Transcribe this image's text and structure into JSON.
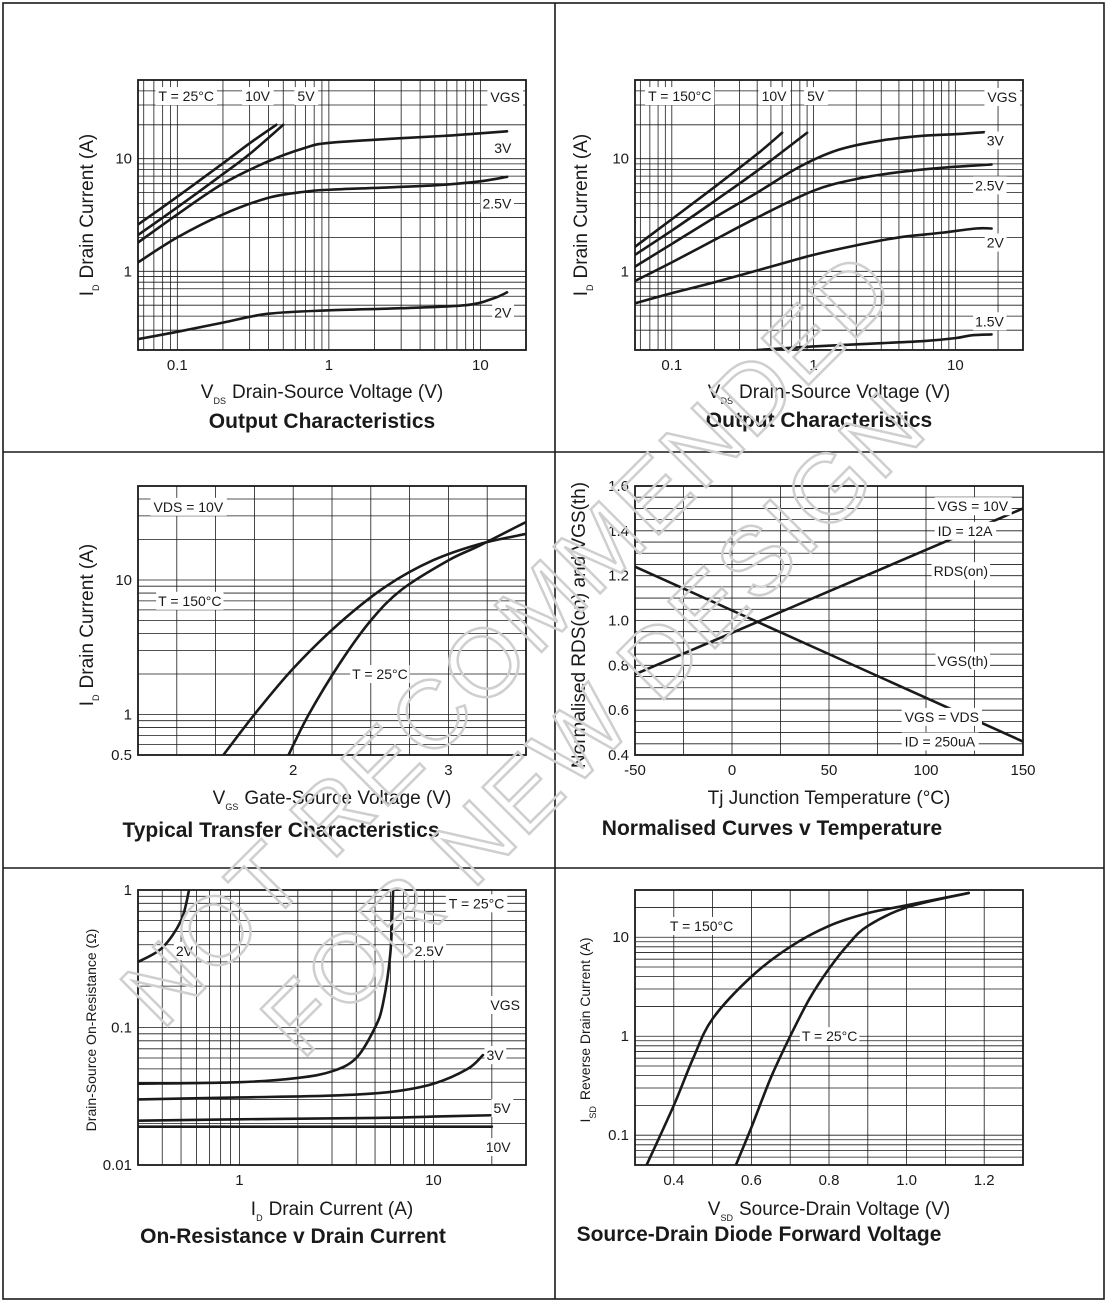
{
  "watermark": {
    "line1": "NOT RECOMMENDED",
    "line2": "FOR NEW DESIGN"
  },
  "chart_data": [
    {
      "id": "p1",
      "type": "line",
      "title": "Output Characteristics",
      "xlabel": "Drain-Source Voltage (V)",
      "xlabel_sym": "V",
      "xlabel_sub": "DS",
      "ylabel": "Drain Current (A)",
      "ylabel_sym": "I",
      "ylabel_sub": "D",
      "xscale": "log",
      "yscale": "log",
      "xlim": [
        0.055,
        20
      ],
      "ylim": [
        0.2,
        50
      ],
      "xticks": [
        {
          "v": 0.1,
          "t": "0.1"
        },
        {
          "v": 1,
          "t": "1"
        },
        {
          "v": 10,
          "t": "10"
        }
      ],
      "yticks": [
        {
          "v": 1,
          "t": "1"
        },
        {
          "v": 10,
          "t": "10"
        }
      ],
      "legend_title": "VGS",
      "annotations": [
        {
          "text": "T = 25°C",
          "x": 0.075,
          "y": 36
        },
        {
          "text": "10V",
          "x": 0.28,
          "y": 36
        },
        {
          "text": "5V",
          "x": 0.62,
          "y": 36
        }
      ],
      "series": [
        {
          "name": "10V",
          "x": [
            0.055,
            0.1,
            0.2,
            0.3,
            0.45
          ],
          "y": [
            2.6,
            4.6,
            9.1,
            13.7,
            20
          ]
        },
        {
          "name": "5V",
          "x": [
            0.055,
            0.1,
            0.2,
            0.3,
            0.5
          ],
          "y": [
            2.1,
            3.7,
            7.3,
            11,
            20
          ]
        },
        {
          "name": "3V",
          "x": [
            0.055,
            0.1,
            0.2,
            0.4,
            0.7,
            1,
            3,
            6,
            10,
            15
          ],
          "y": [
            1.8,
            3.2,
            6,
            9.5,
            12.5,
            13.8,
            15.2,
            16,
            16.8,
            17.5
          ],
          "label": "3V",
          "lx": 16,
          "ly": 12.5
        },
        {
          "name": "2.5V",
          "x": [
            0.055,
            0.1,
            0.2,
            0.4,
            0.7,
            1,
            2,
            5,
            10,
            15
          ],
          "y": [
            1.2,
            2,
            3.2,
            4.5,
            5.1,
            5.3,
            5.5,
            5.8,
            6.3,
            6.9
          ],
          "label": "2.5V",
          "lx": 16,
          "ly": 4
        },
        {
          "name": "2V",
          "x": [
            0.055,
            0.1,
            0.2,
            0.4,
            1,
            3,
            8,
            12,
            15
          ],
          "y": [
            0.25,
            0.29,
            0.35,
            0.42,
            0.45,
            0.47,
            0.5,
            0.57,
            0.65
          ],
          "label": "2V",
          "lx": 16,
          "ly": 0.43
        }
      ]
    },
    {
      "id": "p2",
      "type": "line",
      "title": "Output Characteristics",
      "xlabel": "Drain-Source Voltage (V)",
      "xlabel_sym": "V",
      "xlabel_sub": "DS",
      "ylabel": "Drain Current (A)",
      "ylabel_sym": "I",
      "ylabel_sub": "D",
      "xscale": "log",
      "yscale": "log",
      "xlim": [
        0.055,
        30
      ],
      "ylim": [
        0.2,
        50
      ],
      "xticks": [
        {
          "v": 0.1,
          "t": "0.1"
        },
        {
          "v": 1,
          "t": "1"
        },
        {
          "v": 10,
          "t": "10"
        }
      ],
      "yticks": [
        {
          "v": 1,
          "t": "1"
        },
        {
          "v": 10,
          "t": "10"
        }
      ],
      "legend_title": "VGS",
      "annotations": [
        {
          "text": "T = 150°C",
          "x": 0.068,
          "y": 36
        },
        {
          "text": "10V",
          "x": 0.43,
          "y": 36
        },
        {
          "text": "5V",
          "x": 0.9,
          "y": 36
        }
      ],
      "series": [
        {
          "name": "10V",
          "x": [
            0.055,
            0.1,
            0.2,
            0.4,
            0.6
          ],
          "y": [
            1.65,
            2.9,
            5.6,
            11,
            17
          ]
        },
        {
          "name": "5V",
          "x": [
            0.055,
            0.1,
            0.2,
            0.4,
            0.9
          ],
          "y": [
            1.4,
            2.3,
            4.2,
            7.8,
            17
          ]
        },
        {
          "name": "3V",
          "x": [
            0.055,
            0.1,
            0.2,
            0.4,
            0.8,
            1.5,
            3,
            6,
            10,
            16
          ],
          "y": [
            1.1,
            1.75,
            3,
            5,
            8.5,
            12,
            14.5,
            16,
            16.5,
            17.2
          ],
          "label": "3V",
          "lx": 22,
          "ly": 14.5
        },
        {
          "name": "2.5V",
          "x": [
            0.055,
            0.1,
            0.2,
            0.4,
            1,
            2,
            4,
            8,
            14,
            18
          ],
          "y": [
            0.82,
            1.2,
            1.9,
            3,
            5.2,
            6.6,
            7.6,
            8.3,
            8.7,
            8.9
          ],
          "label": "2.5V",
          "lx": 22,
          "ly": 5.8
        },
        {
          "name": "2V",
          "x": [
            0.055,
            0.1,
            0.2,
            0.5,
            1,
            2,
            4,
            8,
            14,
            18
          ],
          "y": [
            0.52,
            0.64,
            0.8,
            1.1,
            1.4,
            1.7,
            2.0,
            2.2,
            2.4,
            2.4
          ],
          "label": "2V",
          "lx": 22,
          "ly": 1.8
        },
        {
          "name": "1.5V",
          "x": [
            0.4,
            1,
            3,
            6,
            10,
            13,
            18
          ],
          "y": [
            0.2,
            0.215,
            0.23,
            0.24,
            0.255,
            0.27,
            0.275
          ],
          "label": "1.5V",
          "lx": 22,
          "ly": 0.36
        }
      ]
    },
    {
      "id": "p3",
      "type": "line",
      "title": "Typical Transfer Characteristics",
      "xlabel": "Gate-Source Voltage (V)",
      "xlabel_sym": "V",
      "xlabel_sub": "GS",
      "ylabel": "Drain Current (A)",
      "ylabel_sym": "I",
      "ylabel_sub": "D",
      "xscale": "linear",
      "yscale": "log",
      "xlim": [
        1.0,
        3.5
      ],
      "ylim": [
        0.5,
        50
      ],
      "xticks": [
        {
          "v": 2,
          "t": "2"
        },
        {
          "v": 3,
          "t": "3"
        }
      ],
      "yticks": [
        {
          "v": 0.5,
          "t": "0.5"
        },
        {
          "v": 1,
          "t": "1"
        },
        {
          "v": 10,
          "t": "10"
        }
      ],
      "annotations": [
        {
          "text": "VDS = 10V",
          "x": 1.1,
          "y": 35
        }
      ],
      "series": [
        {
          "name": "T = 150°C",
          "x": [
            1.55,
            1.75,
            2.0,
            2.3,
            2.6,
            2.9,
            3.2,
            3.5
          ],
          "y": [
            0.5,
            1,
            2.2,
            4.8,
            9,
            14,
            18.5,
            22
          ],
          "label": "T = 150°C",
          "lx": 1.13,
          "ly": 7
        },
        {
          "name": "T = 25°C",
          "x": [
            1.97,
            2.1,
            2.3,
            2.5,
            2.7,
            3.0,
            3.2,
            3.5
          ],
          "y": [
            0.5,
            1,
            2.4,
            5,
            8.5,
            14,
            18,
            27
          ],
          "label": "T = 25°C",
          "lx": 2.38,
          "ly": 2.0
        }
      ]
    },
    {
      "id": "p4",
      "type": "line",
      "title": "Normalised Curves v Temperature",
      "xlabel": "Tj  Junction Temperature (°C)",
      "ylabel": "Normalised RDS(on) and VGS(th)",
      "xscale": "linear",
      "yscale": "linear",
      "xlim": [
        -50,
        150
      ],
      "ylim": [
        0.4,
        1.6
      ],
      "xticks": [
        {
          "v": -50,
          "t": "-50"
        },
        {
          "v": 0,
          "t": "0"
        },
        {
          "v": 50,
          "t": "50"
        },
        {
          "v": 100,
          "t": "100"
        },
        {
          "v": 150,
          "t": "150"
        }
      ],
      "yticks": [
        {
          "v": 0.4,
          "t": "0.4"
        },
        {
          "v": 0.6,
          "t": "0.6"
        },
        {
          "v": 0.8,
          "t": "0.8"
        },
        {
          "v": 1.0,
          "t": "1.0"
        },
        {
          "v": 1.2,
          "t": "1.2"
        },
        {
          "v": 1.4,
          "t": "1.4"
        },
        {
          "v": 1.6,
          "t": "1.6"
        }
      ],
      "annotations": [
        {
          "text": "VGS = 10V",
          "x": 106,
          "y": 1.51
        },
        {
          "text": "ID = 12A",
          "x": 106,
          "y": 1.4
        },
        {
          "text": "VGS = VDS",
          "x": 89,
          "y": 0.57
        },
        {
          "text": "ID = 250uA",
          "x": 89,
          "y": 0.46
        }
      ],
      "series": [
        {
          "name": "RDS(on)",
          "x": [
            -50,
            150
          ],
          "y": [
            0.76,
            1.5
          ],
          "label": "RDS(on)",
          "lx": 132,
          "ly": 1.22
        },
        {
          "name": "VGS(th)",
          "x": [
            -50,
            150
          ],
          "y": [
            1.24,
            0.46
          ],
          "label": "VGS(th)",
          "lx": 132,
          "ly": 0.82
        }
      ]
    },
    {
      "id": "p5",
      "type": "line",
      "title": "On-Resistance v Drain Current",
      "xlabel": "Drain Current (A)",
      "xlabel_sym": "I",
      "xlabel_sub": "D",
      "ylabel": "Drain-Source On-Resistance (Ω)",
      "xscale": "log",
      "yscale": "log",
      "xlim": [
        0.3,
        30
      ],
      "ylim": [
        0.01,
        1
      ],
      "xticks": [
        {
          "v": 1,
          "t": "1"
        },
        {
          "v": 10,
          "t": "10"
        }
      ],
      "yticks": [
        {
          "v": 0.01,
          "t": "0.01"
        },
        {
          "v": 0.1,
          "t": "0.1"
        },
        {
          "v": 1,
          "t": "1"
        }
      ],
      "legend_title": "VGS",
      "annotations": [
        {
          "text": "T = 25°C",
          "x": 12,
          "y": 0.8
        }
      ],
      "series": [
        {
          "name": "2V",
          "x": [
            0.3,
            0.4,
            0.5,
            0.55
          ],
          "y": [
            0.3,
            0.38,
            0.6,
            1.0
          ],
          "label": "2V",
          "lx": 0.47,
          "ly": 0.36
        },
        {
          "name": "2.5V",
          "x": [
            0.3,
            1,
            2,
            3,
            4,
            5,
            5.5,
            6,
            6.2
          ],
          "y": [
            0.039,
            0.04,
            0.043,
            0.048,
            0.06,
            0.1,
            0.15,
            0.35,
            1.0
          ],
          "label": "2.5V",
          "lx": 8,
          "ly": 0.36
        },
        {
          "name": "3V",
          "x": [
            0.3,
            1,
            3,
            6,
            10,
            15,
            18
          ],
          "y": [
            0.03,
            0.031,
            0.032,
            0.034,
            0.039,
            0.05,
            0.063
          ],
          "label": "3V",
          "lx": 23,
          "ly": 0.063
        },
        {
          "name": "5V",
          "x": [
            0.3,
            1,
            5,
            10,
            20
          ],
          "y": [
            0.021,
            0.0215,
            0.022,
            0.0225,
            0.023
          ],
          "label": "5V",
          "lx": 25,
          "ly": 0.026
        },
        {
          "name": "10V",
          "x": [
            0.3,
            1,
            5,
            10,
            20
          ],
          "y": [
            0.019,
            0.019,
            0.019,
            0.019,
            0.019
          ],
          "label": "10V",
          "lx": 25,
          "ly": 0.0135
        }
      ]
    },
    {
      "id": "p6",
      "type": "line",
      "title": "Source-Drain Diode Forward Voltage",
      "xlabel": "Source-Drain Voltage (V)",
      "xlabel_sym": "V",
      "xlabel_sub": "SD",
      "ylabel": "Reverse Drain Current (A)",
      "ylabel_sym": "I",
      "ylabel_sub": "SD",
      "xscale": "linear",
      "yscale": "log",
      "xlim": [
        0.3,
        1.3
      ],
      "ylim": [
        0.05,
        30
      ],
      "xticks": [
        {
          "v": 0.4,
          "t": "0.4"
        },
        {
          "v": 0.6,
          "t": "0.6"
        },
        {
          "v": 0.8,
          "t": "0.8"
        },
        {
          "v": 1.0,
          "t": "1.0"
        },
        {
          "v": 1.2,
          "t": "1.2"
        }
      ],
      "yticks": [
        {
          "v": 0.1,
          "t": "0.1"
        },
        {
          "v": 1,
          "t": "1"
        },
        {
          "v": 10,
          "t": "10"
        }
      ],
      "annotations": [],
      "series": [
        {
          "name": "T = 150°C",
          "x": [
            0.33,
            0.4,
            0.45,
            0.5,
            0.6,
            0.7,
            0.8,
            0.9,
            1.0,
            1.16
          ],
          "y": [
            0.05,
            0.2,
            0.6,
            1.5,
            4,
            8,
            13,
            17.5,
            21,
            28
          ],
          "label": "T = 150°C",
          "lx": 0.39,
          "ly": 13
        },
        {
          "name": "T = 25°C",
          "x": [
            0.56,
            0.6,
            0.65,
            0.7,
            0.75,
            0.8,
            0.85,
            0.9,
            1.0,
            1.16
          ],
          "y": [
            0.05,
            0.12,
            0.38,
            1.0,
            2.4,
            4.8,
            8.5,
            13,
            20,
            28
          ],
          "label": "T = 25°C",
          "lx": 0.73,
          "ly": 1.0
        }
      ]
    }
  ]
}
